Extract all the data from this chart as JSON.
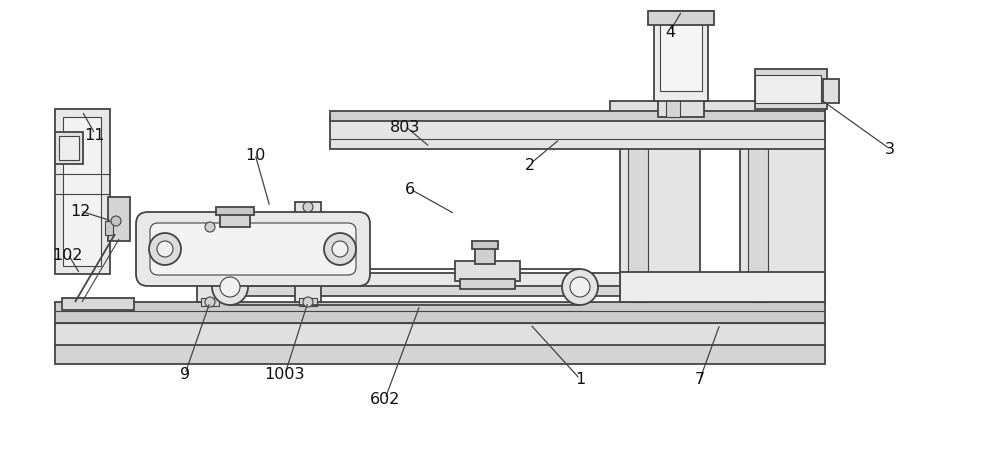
{
  "bg_color": "#ffffff",
  "lc": "#444444",
  "fig_width": 10.0,
  "fig_height": 4.6
}
